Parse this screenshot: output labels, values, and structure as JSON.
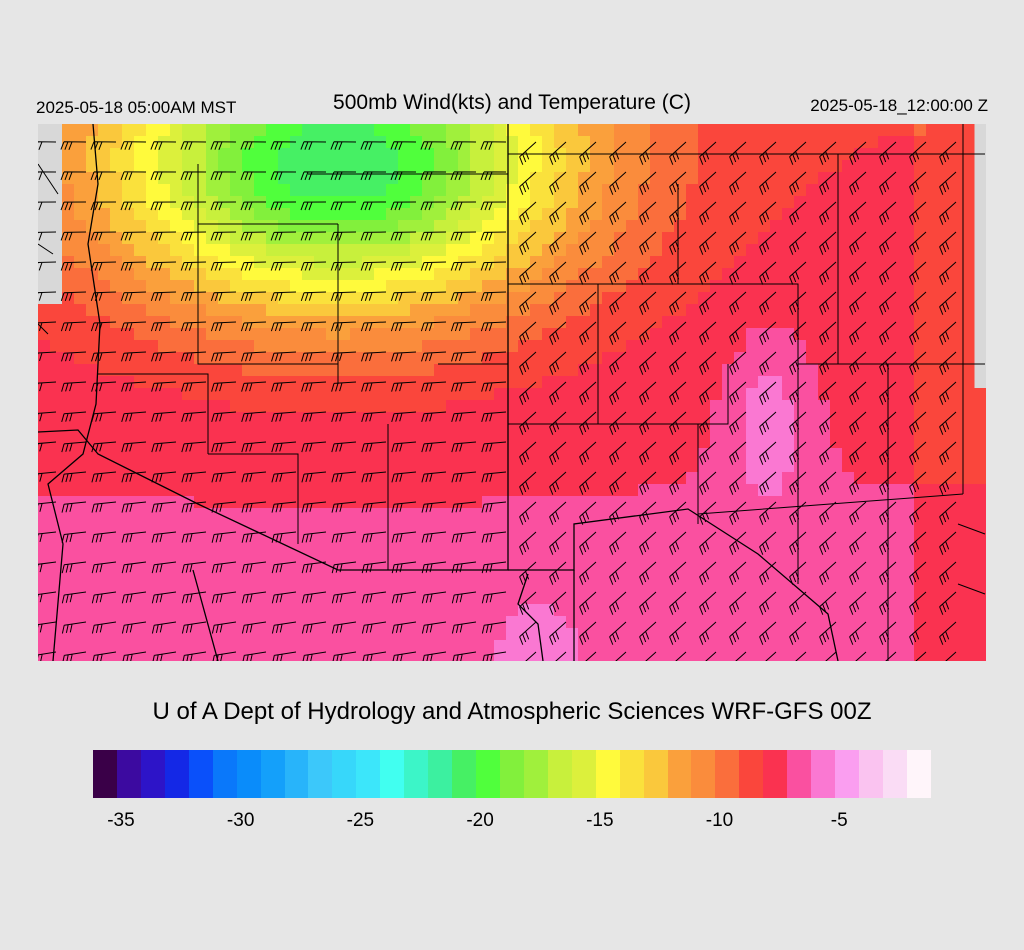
{
  "header": {
    "local_time": "2025-05-18 05:00AM MST",
    "title": "500mb Wind(kts) and Temperature (C)",
    "valid_time": "2025-05-18_12:00:00 Z"
  },
  "credit": "U of A Dept of Hydrology and Atmospheric Sciences WRF-GFS 00Z",
  "map": {
    "temperature_field": "500mb temperature (C)",
    "wind_field": "500mb wind barbs (kts)",
    "coldest_region": "north-center (about -20 to -22 C)",
    "warmest_region": "south and east (about -7 to -8 C)",
    "background_color": "#d8d8d8"
  },
  "colorbar": {
    "colors": [
      "#3a0048",
      "#3c0aa0",
      "#2d14c8",
      "#1428e6",
      "#0a50fa",
      "#0a78fa",
      "#0a8cfa",
      "#14a0fa",
      "#28b4fa",
      "#3cc8fa",
      "#37d7fa",
      "#3ce6fa",
      "#41fff0",
      "#3cf5c8",
      "#3cf0a0",
      "#46f064",
      "#50ff3c",
      "#82f03c",
      "#a0f03c",
      "#c8f03c",
      "#dcf03c",
      "#fffa3c",
      "#fae13c",
      "#fac83c",
      "#faa03c",
      "#fa8c3c",
      "#fa6e3c",
      "#fa463c",
      "#fa3250",
      "#fa50a0",
      "#fa78d2",
      "#fa9ef0",
      "#fac3f0",
      "#fadcf5",
      "#fff5fa"
    ],
    "tick_labels": [
      "-35",
      "-30",
      "-25",
      "-20",
      "-15",
      "-10",
      "-5"
    ],
    "tick_values": [
      -35,
      -30,
      -25,
      -20,
      -15,
      -10,
      -5
    ],
    "min": -36,
    "max": -1
  }
}
